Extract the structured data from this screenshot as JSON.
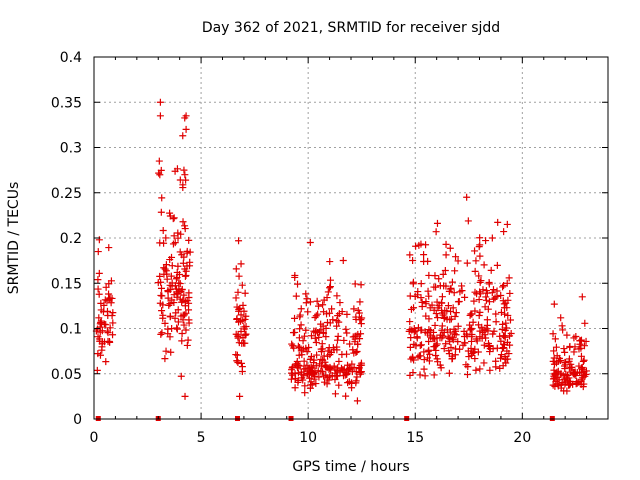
{
  "chart_data": {
    "type": "scatter",
    "title": "Day 362 of 2021, SRMTID for receiver sjdd",
    "xlabel": "GPS time / hours",
    "ylabel": "SRMTID / TECUs",
    "xlim": [
      0,
      24
    ],
    "ylim": [
      0,
      0.4
    ],
    "x_ticks": [
      0,
      5,
      10,
      15,
      20
    ],
    "y_ticks": [
      0,
      0.05,
      0.1,
      0.15,
      0.2,
      0.25,
      0.3,
      0.35,
      0.4
    ],
    "x_tick_labels": [
      "0",
      "5",
      "10",
      "15",
      "20"
    ],
    "y_tick_labels": [
      "0",
      "0.05",
      "0.1",
      "0.15",
      "0.2",
      "0.25",
      "0.3",
      "0.35",
      "0.4"
    ],
    "grid": true,
    "marker": "+",
    "series_color": "#e00000",
    "baseline_markers_x": [
      0.2,
      3.0,
      6.7,
      9.2,
      14.6,
      21.4
    ],
    "clusters": [
      {
        "x_start": 0.1,
        "x_end": 0.9,
        "y_min": 0.04,
        "y_max": 0.2,
        "y_center": 0.11,
        "count": 55
      },
      {
        "x_start": 3.0,
        "x_end": 4.5,
        "y_min": 0.02,
        "y_max": 0.35,
        "y_center": 0.16,
        "count": 140
      },
      {
        "x_start": 6.6,
        "x_end": 7.1,
        "y_min": 0.025,
        "y_max": 0.2,
        "y_center": 0.1,
        "count": 45
      },
      {
        "x_start": 9.2,
        "x_end": 12.5,
        "y_min": 0.02,
        "y_max": 0.195,
        "y_center": 0.06,
        "count": 260
      },
      {
        "x_start": 14.7,
        "x_end": 19.5,
        "y_min": 0.03,
        "y_max": 0.245,
        "y_center": 0.1,
        "count": 330
      },
      {
        "x_start": 21.4,
        "x_end": 23.0,
        "y_min": 0.025,
        "y_max": 0.135,
        "y_center": 0.055,
        "count": 120
      }
    ],
    "notable_points": [
      {
        "x": 3.1,
        "y": 0.35
      },
      {
        "x": 3.1,
        "y": 0.335
      },
      {
        "x": 4.3,
        "y": 0.335
      },
      {
        "x": 4.3,
        "y": 0.32
      },
      {
        "x": 3.05,
        "y": 0.285
      },
      {
        "x": 4.2,
        "y": 0.275
      },
      {
        "x": 0.25,
        "y": 0.198
      },
      {
        "x": 0.2,
        "y": 0.185
      },
      {
        "x": 6.75,
        "y": 0.197
      },
      {
        "x": 10.1,
        "y": 0.195
      },
      {
        "x": 17.4,
        "y": 0.245
      },
      {
        "x": 19.3,
        "y": 0.215
      },
      {
        "x": 18.6,
        "y": 0.2
      },
      {
        "x": 22.8,
        "y": 0.135
      },
      {
        "x": 11.0,
        "y": 0.145
      },
      {
        "x": 4.25,
        "y": 0.025
      },
      {
        "x": 6.8,
        "y": 0.025
      },
      {
        "x": 12.3,
        "y": 0.02
      }
    ]
  }
}
